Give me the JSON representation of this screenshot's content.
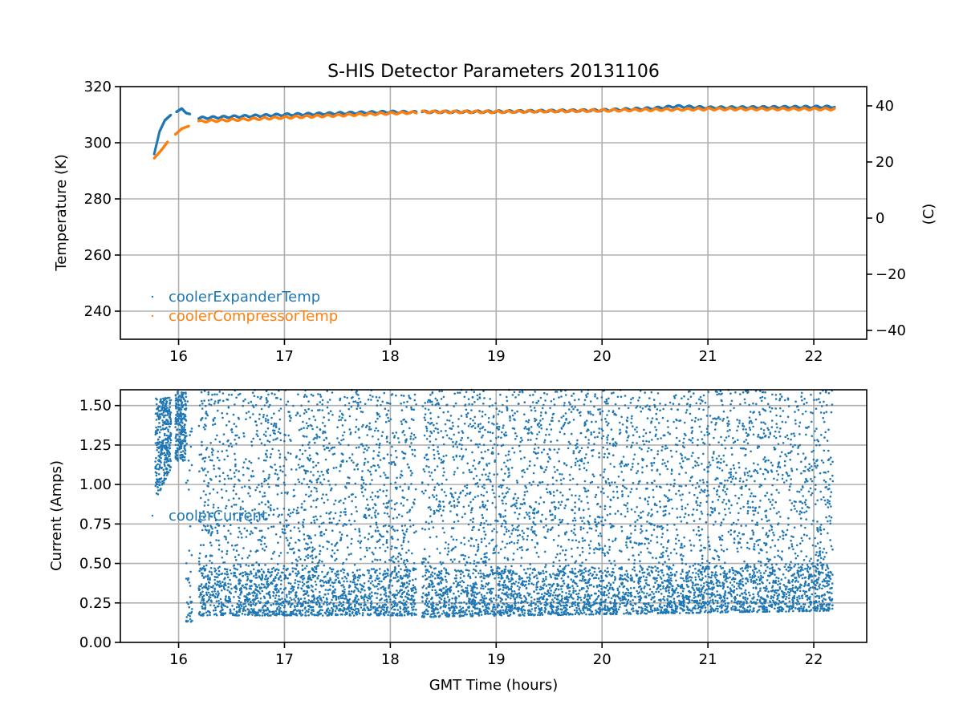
{
  "chart_data": [
    {
      "type": "scatter",
      "title": "S-HIS Detector Parameters 20131106",
      "xlabel": "",
      "ylabel": "Temperature (K)",
      "ylabel_right": "(C)",
      "xlim": [
        15.45,
        22.5
      ],
      "ylim": [
        230,
        320
      ],
      "xticks": [
        16,
        17,
        18,
        19,
        20,
        21,
        22
      ],
      "xtick_labels": [
        "16",
        "17",
        "18",
        "19",
        "20",
        "21",
        "22"
      ],
      "yticks": [
        240,
        260,
        280,
        300,
        320
      ],
      "ytick_labels": [
        "240",
        "260",
        "280",
        "300",
        "320"
      ],
      "yticks_right": [
        -40,
        -20,
        0,
        20,
        40
      ],
      "ytick_labels_right": [
        "−40",
        "−20",
        "0",
        "20",
        "40"
      ],
      "grid": true,
      "legend_position": "lower-left",
      "series": [
        {
          "name": "coolerExpanderTemp",
          "color": "#1f77b4",
          "segments": [
            [
              [
                15.77,
                296
              ],
              [
                15.82,
                304
              ],
              [
                15.87,
                308
              ],
              [
                15.93,
                310
              ]
            ],
            [
              [
                15.98,
                311
              ],
              [
                16.03,
                312.2
              ],
              [
                16.07,
                310.6
              ],
              [
                16.11,
                310.2
              ]
            ],
            [
              [
                16.19,
                308.8
              ],
              [
                17,
                310
              ],
              [
                18,
                311
              ],
              [
                18.25,
                310.9
              ]
            ],
            [
              [
                18.3,
                311
              ],
              [
                19,
                311.1
              ],
              [
                20,
                311.6
              ],
              [
                20.5,
                312.3
              ],
              [
                20.7,
                313
              ],
              [
                21,
                312.5
              ],
              [
                22.2,
                312.8
              ]
            ]
          ]
        },
        {
          "name": "coolerCompressorTemp",
          "color": "#ff7f0e",
          "segments": [
            [
              [
                15.77,
                294.5
              ],
              [
                15.84,
                297.5
              ],
              [
                15.9,
                300.5
              ]
            ],
            [
              [
                15.97,
                303
              ],
              [
                16.03,
                305
              ],
              [
                16.1,
                306
              ]
            ],
            [
              [
                16.19,
                307.6
              ],
              [
                17,
                309
              ],
              [
                18,
                310.5
              ],
              [
                18.25,
                310.8
              ]
            ],
            [
              [
                18.3,
                311
              ],
              [
                19,
                311
              ],
              [
                20,
                311.5
              ],
              [
                21,
                312
              ],
              [
                22.2,
                312
              ]
            ]
          ]
        }
      ]
    },
    {
      "type": "scatter",
      "title": "",
      "xlabel": "GMT Time (hours)",
      "ylabel": "Current (Amps)",
      "xlim": [
        15.45,
        22.5
      ],
      "ylim": [
        0,
        1.6
      ],
      "xticks": [
        16,
        17,
        18,
        19,
        20,
        21,
        22
      ],
      "xtick_labels": [
        "16",
        "17",
        "18",
        "19",
        "20",
        "21",
        "22"
      ],
      "yticks": [
        0,
        0.25,
        0.5,
        0.75,
        1.0,
        1.25,
        1.5
      ],
      "ytick_labels": [
        "0.00",
        "0.25",
        "0.50",
        "0.75",
        "1.00",
        "1.25",
        "1.50"
      ],
      "grid": true,
      "legend_position": "center-left",
      "series": [
        {
          "name": "coolerCurrent",
          "color": "#1f77b4",
          "segments": [
            {
              "x": [
                15.78,
                15.93
              ],
              "floor_start": 0.9,
              "floor_end": 1.1,
              "ceil": 1.55,
              "density": 1.6
            },
            {
              "x": [
                15.97,
                16.07
              ],
              "floor_start": 1.15,
              "floor_end": 1.15,
              "ceil": 1.6,
              "density": 1.6
            },
            {
              "x": [
                16.07,
                16.13
              ],
              "floor_start": 0.13,
              "floor_end": 0.13,
              "ceil": 1.6,
              "density": 0.6
            },
            {
              "x": [
                16.19,
                18.25
              ],
              "floor_start": 0.17,
              "floor_end": 0.17,
              "ceil": 1.6,
              "density": 1
            },
            {
              "x": [
                18.3,
                22.18
              ],
              "floor_start": 0.16,
              "floor_end": 0.2,
              "ceil": 1.6,
              "density": 1
            }
          ]
        }
      ]
    }
  ]
}
